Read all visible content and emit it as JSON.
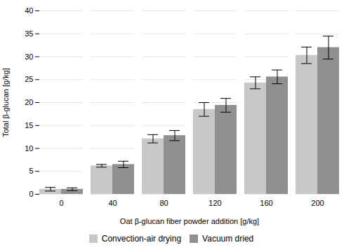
{
  "chart_data": {
    "type": "bar",
    "xlabel": "Oat β-glucan fiber powder addition [g/kg]",
    "ylabel": "Total β-glucan [g/kg]",
    "categories": [
      0,
      40,
      80,
      120,
      160,
      200
    ],
    "series": [
      {
        "name": "Convection-air drying",
        "color": "#c8c8c8",
        "values": [
          1.1,
          6.2,
          12.1,
          18.5,
          24.3,
          30.3
        ],
        "errors": [
          0.4,
          0.3,
          0.9,
          1.5,
          1.3,
          1.8
        ]
      },
      {
        "name": "Vacuum dried",
        "color": "#909090",
        "values": [
          1.1,
          6.5,
          12.8,
          19.4,
          25.6,
          32.0
        ],
        "errors": [
          0.3,
          0.7,
          1.1,
          1.5,
          1.5,
          2.5
        ]
      }
    ],
    "ylim": [
      0,
      40
    ],
    "yticks": [
      0,
      5,
      10,
      15,
      20,
      25,
      30,
      35,
      40
    ],
    "grid": true,
    "legend": "bottom"
  }
}
